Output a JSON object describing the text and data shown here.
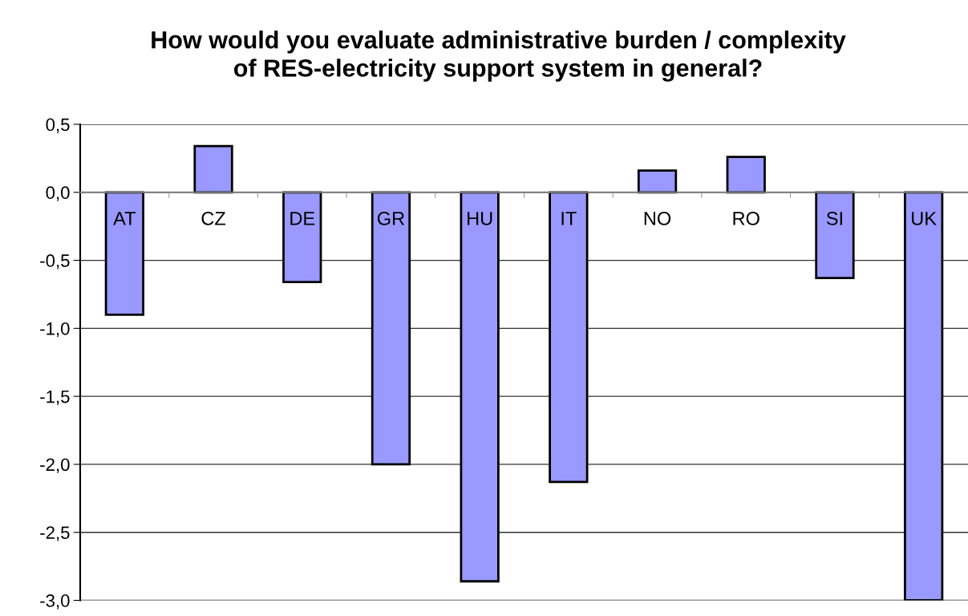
{
  "chart_data": {
    "type": "bar",
    "title": "How would you evaluate administrative burden / complexity\nof RES-electricity support system in general?",
    "categories": [
      "AT",
      "CZ",
      "DE",
      "GR",
      "HU",
      "IT",
      "NO",
      "RO",
      "SI",
      "UK"
    ],
    "values": [
      -0.9,
      0.34,
      -0.66,
      -2.0,
      -2.86,
      -2.13,
      0.16,
      0.26,
      -0.63,
      -3.0
    ],
    "color": "#9999ff",
    "ylim": [
      -3.0,
      0.5
    ],
    "yticks": [
      {
        "value": 0.5,
        "label": "0,5"
      },
      {
        "value": 0.0,
        "label": "0,0"
      },
      {
        "value": -0.5,
        "label": "-0,5"
      },
      {
        "value": -1.0,
        "label": "-1,0"
      },
      {
        "value": -1.5,
        "label": "-1,5"
      },
      {
        "value": -2.0,
        "label": "-2,0"
      },
      {
        "value": -2.5,
        "label": "-2,5"
      },
      {
        "value": -3.0,
        "label": "-3,0"
      }
    ],
    "grid": "y"
  }
}
